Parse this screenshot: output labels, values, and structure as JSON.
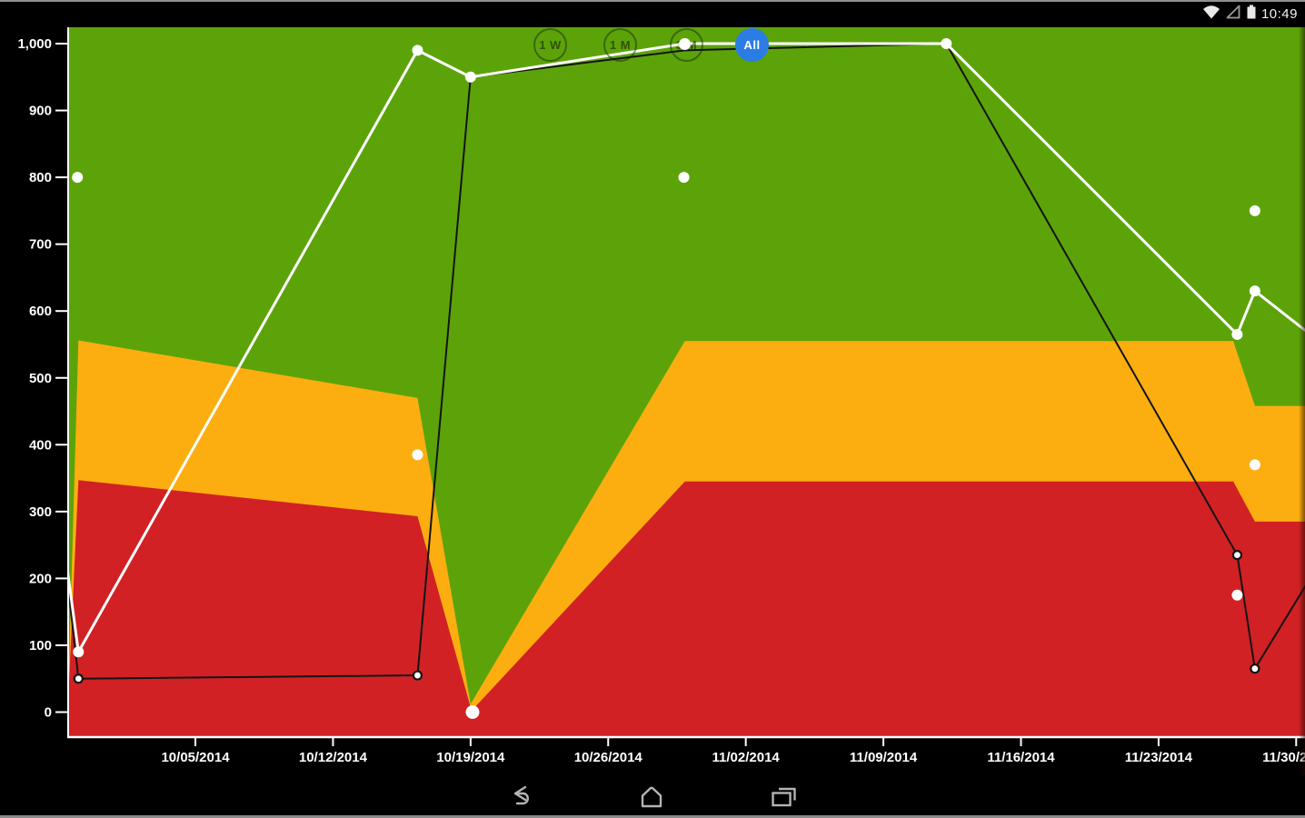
{
  "ui": {
    "status_bar": {
      "time": "10:49",
      "icons": [
        "wifi-icon",
        "cell-signal-icon",
        "battery-icon"
      ]
    },
    "range_buttons": [
      {
        "label": "1 W",
        "selected": false
      },
      {
        "label": "1 M",
        "selected": false
      },
      {
        "label": "3 M",
        "selected": false
      },
      {
        "label": "All",
        "selected": true
      }
    ],
    "nav_bar": {
      "back": "back",
      "home": "home",
      "recents": "recents"
    }
  },
  "chart_data": {
    "type": "area",
    "subtype": "threshold bands (green/orange/red) with two line series and isolated scatter markers",
    "title": "",
    "xlabel": "",
    "ylabel": "",
    "x_axis": {
      "start_date": "09/28/2014",
      "end_date": "11/30/2014",
      "unit": "days_since_09_28_2014",
      "tick_days": [
        7,
        14,
        21,
        28,
        35,
        42,
        49,
        56,
        63
      ],
      "tick_labels": [
        "10/05/2014",
        "10/12/2014",
        "10/19/2014",
        "10/26/2014",
        "11/02/2014",
        "11/09/2014",
        "11/16/2014",
        "11/23/2014",
        "11/30/2014"
      ]
    },
    "y_axis": {
      "min": 0,
      "max": 1000,
      "step": 100,
      "tick_values": [
        0,
        100,
        200,
        300,
        400,
        500,
        600,
        700,
        800,
        900,
        1000
      ],
      "tick_labels": [
        "0",
        "100",
        "200",
        "300",
        "400",
        "500",
        "600",
        "700",
        "800",
        "900",
        "1,000"
      ]
    },
    "grid": "off",
    "legend": "none",
    "colors": {
      "background_zone_green": "#5ca30a",
      "zone_orange": "#fcae10",
      "zone_red": "#d12124",
      "series_white": "#ffffff",
      "series_black": "#141414",
      "axis": "#ffffff",
      "selected_button_blue": "#2b7de5"
    },
    "bands": [
      {
        "name": "orange-zone-upper-boundary",
        "color": "#fcae10",
        "points": [
          {
            "date": "09/28/2014",
            "day": 0.5,
            "value": 0
          },
          {
            "date": "09/29/2014",
            "day": 1.05,
            "value": 556
          },
          {
            "date": "10/16/2014",
            "day": 18.3,
            "value": 470
          },
          {
            "date": "10/19/2014",
            "day": 21.0,
            "value": 12
          },
          {
            "date": "10/30/2014",
            "day": 31.9,
            "value": 555
          },
          {
            "date": "11/27/2014",
            "day": 59.8,
            "value": 555
          },
          {
            "date": "11/28/2014",
            "day": 60.9,
            "value": 458
          },
          {
            "date": "11/30/2014",
            "day": 63.5,
            "value": 458
          }
        ]
      },
      {
        "name": "red-zone-upper-boundary",
        "color": "#d12124",
        "points": [
          {
            "date": "09/28/2014",
            "day": 0.5,
            "value": 0
          },
          {
            "date": "09/29/2014",
            "day": 1.05,
            "value": 347
          },
          {
            "date": "10/16/2014",
            "day": 18.3,
            "value": 293
          },
          {
            "date": "10/19/2014",
            "day": 21.05,
            "value": 2
          },
          {
            "date": "10/30/2014",
            "day": 31.9,
            "value": 345
          },
          {
            "date": "11/27/2014",
            "day": 59.8,
            "value": 345
          },
          {
            "date": "11/28/2014",
            "day": 60.9,
            "value": 285
          },
          {
            "date": "11/30/2014",
            "day": 63.5,
            "value": 285
          }
        ]
      }
    ],
    "series": [
      {
        "name": "black-line",
        "color": "#141414",
        "points": [
          {
            "date": "09/28/2014",
            "day": 0.5,
            "value": 195,
            "dot": false
          },
          {
            "date": "09/29/2014",
            "day": 1.05,
            "value": 50,
            "dot": true
          },
          {
            "date": "10/16/2014",
            "day": 18.3,
            "value": 55,
            "dot": true
          },
          {
            "date": "10/19/2014",
            "day": 21.0,
            "value": 950,
            "dot": false
          },
          {
            "date": "10/30/2014",
            "day": 31.9,
            "value": 990,
            "dot": false
          },
          {
            "date": "11/12/2014",
            "day": 45.2,
            "value": 1000,
            "dot": false
          },
          {
            "date": "11/27/2014",
            "day": 60.0,
            "value": 235,
            "dot": true
          },
          {
            "date": "11/28/2014",
            "day": 60.9,
            "value": 65,
            "dot": true
          },
          {
            "date": "11/30/2014",
            "day": 63.5,
            "value": 190,
            "dot": false
          }
        ]
      },
      {
        "name": "white-line",
        "color": "#ffffff",
        "points": [
          {
            "date": "09/28/2014",
            "day": 0.5,
            "value": 210,
            "dot": false
          },
          {
            "date": "09/29/2014",
            "day": 1.05,
            "value": 90,
            "dot": true
          },
          {
            "date": "10/16/2014",
            "day": 18.3,
            "value": 990,
            "dot": true
          },
          {
            "date": "10/19/2014",
            "day": 21.0,
            "value": 950,
            "dot": true
          },
          {
            "date": "10/30/2014",
            "day": 31.9,
            "value": 1000,
            "dot": true
          },
          {
            "date": "11/12/2014",
            "day": 45.2,
            "value": 1000,
            "dot": true
          },
          {
            "date": "11/27/2014",
            "day": 60.0,
            "value": 565,
            "dot": true
          },
          {
            "date": "11/28/2014",
            "day": 60.9,
            "value": 630,
            "dot": true
          },
          {
            "date": "11/30/2014",
            "day": 63.5,
            "value": 570,
            "dot": false
          }
        ]
      }
    ],
    "scatter": {
      "name": "isolated-white-markers",
      "color": "#ffffff",
      "points": [
        {
          "date": "09/29/2014",
          "day": 1.0,
          "value": 800
        },
        {
          "date": "10/16/2014",
          "day": 18.3,
          "value": 385
        },
        {
          "date": "10/19/2014",
          "day": 21.1,
          "value": 0
        },
        {
          "date": "10/30/2014",
          "day": 31.85,
          "value": 800
        },
        {
          "date": "11/27/2014",
          "day": 60.0,
          "value": 175
        },
        {
          "date": "11/28/2014",
          "day": 60.9,
          "value": 750
        },
        {
          "date": "11/28/2014",
          "day": 60.9,
          "value": 370
        }
      ]
    }
  }
}
